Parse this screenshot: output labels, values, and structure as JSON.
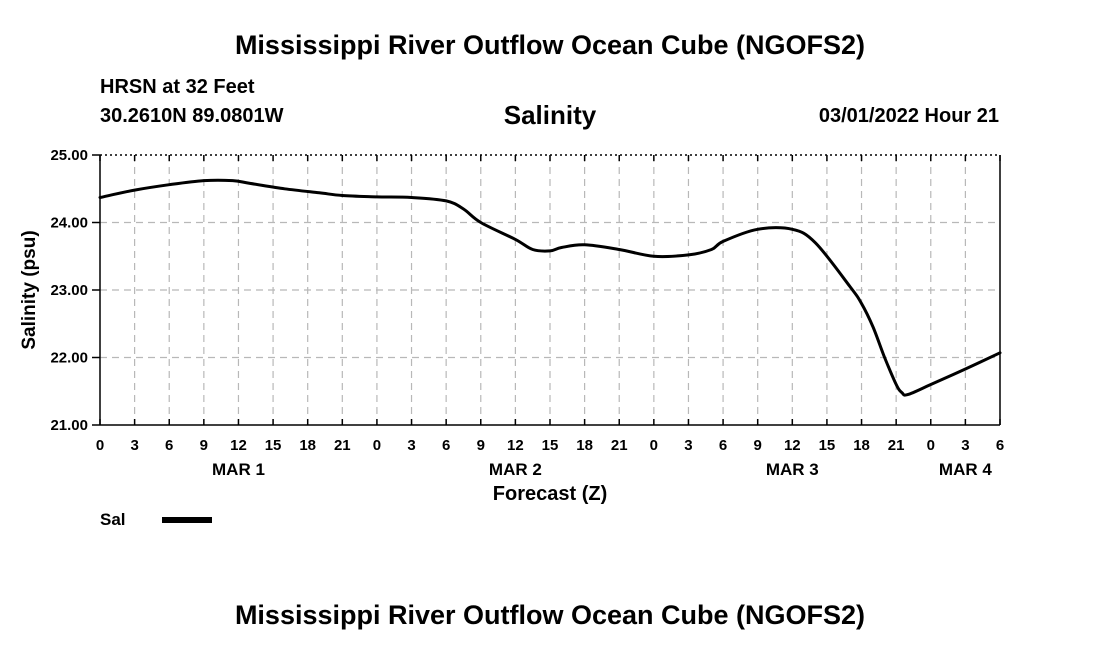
{
  "header": {
    "title": "Mississippi River Outflow Ocean Cube (NGOFS2)",
    "station": "HRSN at 32 Feet",
    "coordinates": "30.2610N  89.0801W",
    "plot_title": "Salinity",
    "datetime": "03/01/2022 Hour 21"
  },
  "footer": {
    "title": "Mississippi River Outflow Ocean Cube (NGOFS2)"
  },
  "legend": {
    "label": "Sal"
  },
  "chart_data": {
    "type": "line",
    "title": "Salinity",
    "xlabel": "Forecast (Z)",
    "ylabel": "Salinity (psu)",
    "ylim": [
      21.0,
      25.0
    ],
    "xlim_hours": [
      0,
      78
    ],
    "y_ticks": [
      "21.00",
      "22.00",
      "23.00",
      "24.00",
      "25.00"
    ],
    "x_tick_labels": [
      "0",
      "3",
      "6",
      "9",
      "12",
      "15",
      "18",
      "21",
      "0",
      "3",
      "6",
      "9",
      "12",
      "15",
      "18",
      "21",
      "0",
      "3",
      "6",
      "9",
      "12",
      "15",
      "18",
      "21",
      "0",
      "3",
      "6"
    ],
    "day_labels": [
      "MAR 1",
      "MAR 2",
      "MAR 3",
      "MAR 4"
    ],
    "day_label_hours": [
      12,
      36,
      60,
      75
    ],
    "grid": true,
    "series": [
      {
        "name": "Sal",
        "color": "#000000",
        "x_hours": [
          0,
          3,
          6,
          9,
          11.5,
          13,
          16,
          19,
          21,
          24,
          27,
          30,
          31.5,
          33,
          36,
          37.5,
          39,
          40,
          42,
          45,
          48,
          51,
          53,
          54,
          57,
          60,
          62,
          65,
          66,
          67,
          68,
          69,
          69.5,
          70,
          72,
          75,
          78
        ],
        "values": [
          24.37,
          24.48,
          24.56,
          24.62,
          24.62,
          24.58,
          24.5,
          24.44,
          24.4,
          24.38,
          24.37,
          24.32,
          24.2,
          24.0,
          23.75,
          23.6,
          23.58,
          23.63,
          23.67,
          23.6,
          23.5,
          23.52,
          23.6,
          23.72,
          23.9,
          23.9,
          23.7,
          23.05,
          22.8,
          22.45,
          22.0,
          21.6,
          21.48,
          21.45,
          21.6,
          21.83,
          22.07
        ]
      }
    ]
  }
}
